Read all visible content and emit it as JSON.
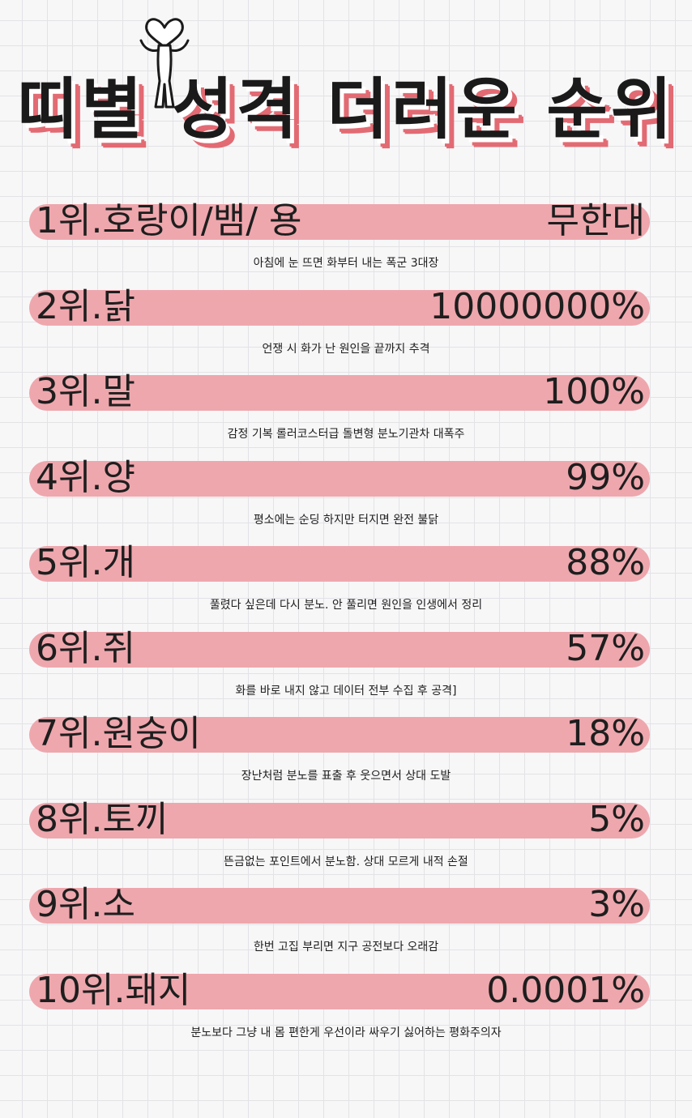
{
  "title": "띠별 성격 더러운 순위",
  "ranks": [
    {
      "label": "1위.호랑이/뱀/ 용",
      "value": "무한대",
      "description": "아침에 눈 뜨면 화부터 내는 폭군 3대장"
    },
    {
      "label": "2위.닭",
      "value": "10000000%",
      "description": "언쟁 시 화가 난 원인을 끝까지 추격"
    },
    {
      "label": "3위.말",
      "value": "100%",
      "description": "감정 기복 롤러코스터급 돌변형 분노기관차 대폭주"
    },
    {
      "label": "4위.양",
      "value": "99%",
      "description": "평소에는 순딩 하지만 터지면 완전 불닭"
    },
    {
      "label": "5위.개",
      "value": "88%",
      "description": "풀렸다 싶은데 다시 분노. 안 풀리면 원인을 인생에서 정리"
    },
    {
      "label": "6위.쥐",
      "value": "57%",
      "description": "화를 바로 내지 않고 데이터 전부 수집 후 공격]"
    },
    {
      "label": "7위.원숭이",
      "value": "18%",
      "description": "장난처럼 분노를 표출 후 웃으면서 상대 도발"
    },
    {
      "label": "8위.토끼",
      "value": "5%",
      "description": "뜬금없는 포인트에서 분노함. 상대 모르게 내적 손절"
    },
    {
      "label": "9위.소",
      "value": "3%",
      "description": "한번 고집 부리면 지구 공전보다 오래감"
    },
    {
      "label": "10위.돼지",
      "value": "0.0001%",
      "description": "분노보다 그냥 내 몸 편한게 우선이라 싸우기 싫어하는 평화주의자"
    }
  ],
  "colors": {
    "bar": "#eea7ad",
    "title_shadow": "#e26a73",
    "text": "#1e1e1e"
  },
  "icons": [
    "mascot-figure-icon"
  ]
}
